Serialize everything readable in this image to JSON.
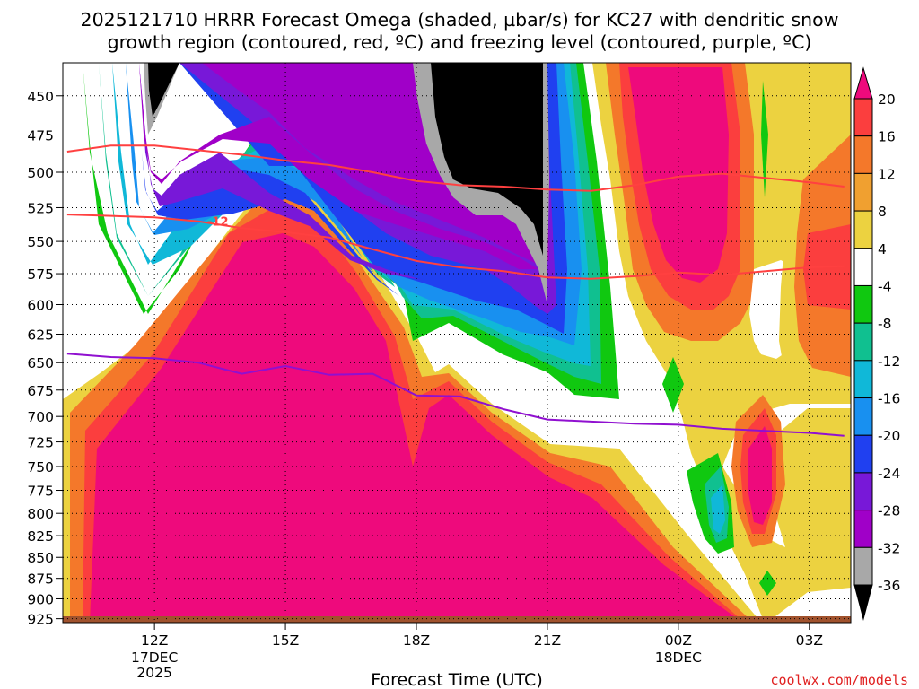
{
  "title": {
    "line1": "2025121710 HRRR Forecast Omega (shaded, µbar/s) for KC27 with dendritic snow",
    "line2": "growth region (contoured, red, ºC) and freezing level (contoured, purple, ºC)"
  },
  "credit": "coolwx.com/models",
  "chart_data": {
    "type": "heatmap",
    "title": "2025121710 HRRR Forecast Omega (shaded, µbar/s) for KC27 with dendritic snow growth region (contoured, red, ºC) and freezing level (contoured, purple, ºC)",
    "xlabel": "Forecast Time (UTC)",
    "ylabel": "",
    "x_ticks": [
      {
        "label": "12Z",
        "sub": [
          "17DEC",
          "2025"
        ]
      },
      {
        "label": "15Z",
        "sub": []
      },
      {
        "label": "18Z",
        "sub": []
      },
      {
        "label": "21Z",
        "sub": []
      },
      {
        "label": "00Z",
        "sub": [
          "18DEC"
        ]
      },
      {
        "label": "03Z",
        "sub": []
      }
    ],
    "y_ticks": [
      "450",
      "475",
      "500",
      "525",
      "550",
      "575",
      "600",
      "625",
      "650",
      "675",
      "700",
      "725",
      "750",
      "775",
      "800",
      "825",
      "850",
      "875",
      "900",
      "925"
    ],
    "y_range_hpa": [
      430,
      930
    ],
    "y_scale": "log-pressure",
    "grid": true,
    "colorbar": {
      "labels": [
        "20",
        "16",
        "12",
        "8",
        "4",
        "-4",
        "-8",
        "-12",
        "-16",
        "-20",
        "-24",
        "-28",
        "-32",
        "-36"
      ],
      "colors": [
        "#ee0a7c",
        "#fb3e3e",
        "#f4782a",
        "#f0a030",
        "#ecd240",
        "#ffffff",
        "#10c810",
        "#10c090",
        "#10b8d8",
        "#1890f0",
        "#2040f0",
        "#7818d8",
        "#a000c8",
        "#a8a8a8",
        "#000000"
      ]
    },
    "series": [
      {
        "name": "-12",
        "color": "#ff4040",
        "points": [
          [
            10.0,
            530
          ],
          [
            12.0,
            532
          ],
          [
            13.0,
            535
          ],
          [
            14.0,
            540
          ],
          [
            15.0,
            543
          ],
          [
            16.0,
            547
          ],
          [
            17.0,
            556
          ],
          [
            18.0,
            565
          ],
          [
            19.0,
            570
          ],
          [
            20.0,
            573
          ],
          [
            21.0,
            578
          ],
          [
            22.0,
            579
          ],
          [
            23.0,
            577
          ],
          [
            24.0,
            574
          ],
          [
            25.0,
            576
          ],
          [
            26.0,
            573
          ],
          [
            27.0,
            570
          ],
          [
            27.8,
            569
          ]
        ]
      },
      {
        "name": "",
        "color": "#ff4040",
        "points": [
          [
            10.0,
            486
          ],
          [
            11.0,
            482
          ],
          [
            12.0,
            482
          ],
          [
            13.0,
            485
          ],
          [
            14.0,
            488
          ],
          [
            15.0,
            492
          ],
          [
            16.0,
            495
          ],
          [
            17.0,
            500
          ],
          [
            18.0,
            506
          ],
          [
            19.0,
            509
          ],
          [
            20.0,
            510
          ],
          [
            21.0,
            512
          ],
          [
            22.0,
            513
          ],
          [
            23.0,
            509
          ],
          [
            24.0,
            503
          ],
          [
            25.0,
            501
          ],
          [
            26.0,
            504
          ],
          [
            27.0,
            507
          ],
          [
            27.8,
            510
          ]
        ]
      },
      {
        "name": "",
        "color": "#9010d0",
        "points": [
          [
            10.0,
            642
          ],
          [
            11.0,
            645
          ],
          [
            12.0,
            646
          ],
          [
            13.0,
            650
          ],
          [
            14.0,
            660
          ],
          [
            15.0,
            653
          ],
          [
            16.0,
            661
          ],
          [
            17.0,
            660
          ],
          [
            18.0,
            680
          ],
          [
            19.0,
            681
          ],
          [
            20.0,
            693
          ],
          [
            21.0,
            703
          ],
          [
            22.0,
            705
          ],
          [
            23.0,
            707
          ],
          [
            24.0,
            708
          ],
          [
            25.0,
            712
          ],
          [
            26.0,
            714
          ],
          [
            27.0,
            716
          ],
          [
            27.8,
            719
          ]
        ]
      }
    ]
  }
}
